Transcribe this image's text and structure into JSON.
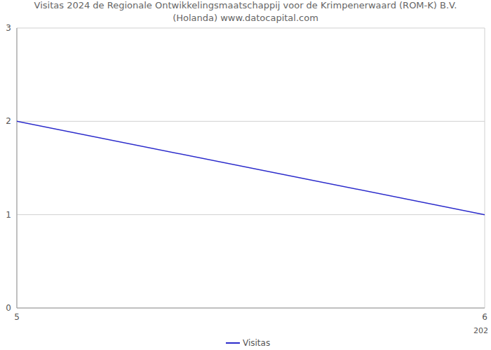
{
  "chart_data": {
    "type": "line",
    "title": [
      "Visitas 2024 de Regionale Ontwikkelingsmaatschappij voor de    Krimpenerwaard (ROM-K) B.V.",
      "(Holanda) www.datocapital.com"
    ],
    "xlabel": "202",
    "x": [
      5,
      6
    ],
    "series": [
      {
        "name": "Visitas",
        "color": "#2a2acb",
        "values": [
          2,
          1
        ]
      }
    ],
    "xlim": [
      5,
      6
    ],
    "xticks": [
      5,
      6
    ],
    "ylim": [
      0,
      3
    ],
    "yticks": [
      0,
      1,
      2,
      3
    ],
    "grid": true,
    "legend": "bottom"
  }
}
